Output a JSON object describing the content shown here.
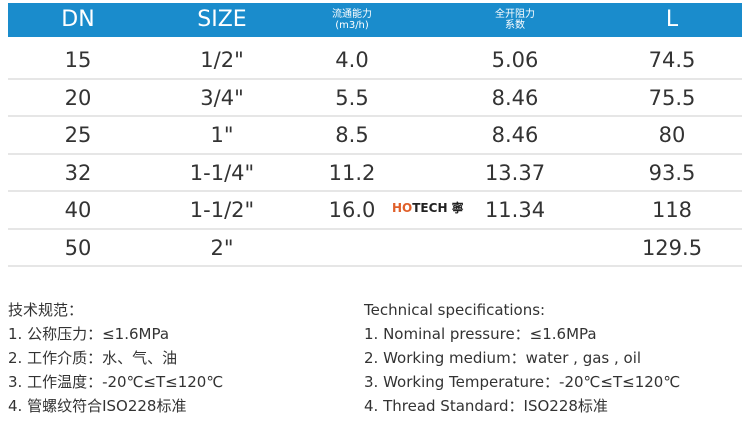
{
  "header": {
    "dn": "DN",
    "size": "SIZE",
    "flow": "流通能力",
    "flow_unit": "(m3/h)",
    "resist": "全开阻力",
    "resist2": "系数",
    "l": "L"
  },
  "rows": [
    {
      "dn": "15",
      "size": "1/2\"",
      "flow": "4.0",
      "resist": "5.06",
      "l": "74.5"
    },
    {
      "dn": "20",
      "size": "3/4\"",
      "flow": "5.5",
      "resist": "8.46",
      "l": "75.5"
    },
    {
      "dn": "25",
      "size": "1\"",
      "flow": "8.5",
      "resist": "8.46",
      "l": "80"
    },
    {
      "dn": "32",
      "size": "1-1/4\"",
      "flow": "11.2",
      "resist": "13.37",
      "l": "93.5"
    },
    {
      "dn": "40",
      "size": "1-1/2\"",
      "flow": "16.0",
      "resist": "11.34",
      "l": "118"
    },
    {
      "dn": "50",
      "size": "2\"",
      "flow": "",
      "resist": "",
      "l": "129.5"
    }
  ],
  "watermark": {
    "h": "HO",
    "t": "TECH",
    "mark": "寧"
  },
  "spec_cn": [
    "技术规范：",
    "1. 公称压力：≤1.6MPa",
    "2. 工作介质：水、气、油",
    "3. 工作温度：-20℃≤T≤120℃",
    "4. 管螺纹符合ISO228标准"
  ],
  "spec_en": [
    "Technical specifications:",
    "1. Nominal pressure：≤1.6MPa",
    "2. Working medium：water , gas , oil",
    "3. Working Temperature：-20℃≤T≤120℃",
    "4. Thread Standard：ISO228标准"
  ],
  "colors": {
    "header": "#1a8ccc"
  }
}
